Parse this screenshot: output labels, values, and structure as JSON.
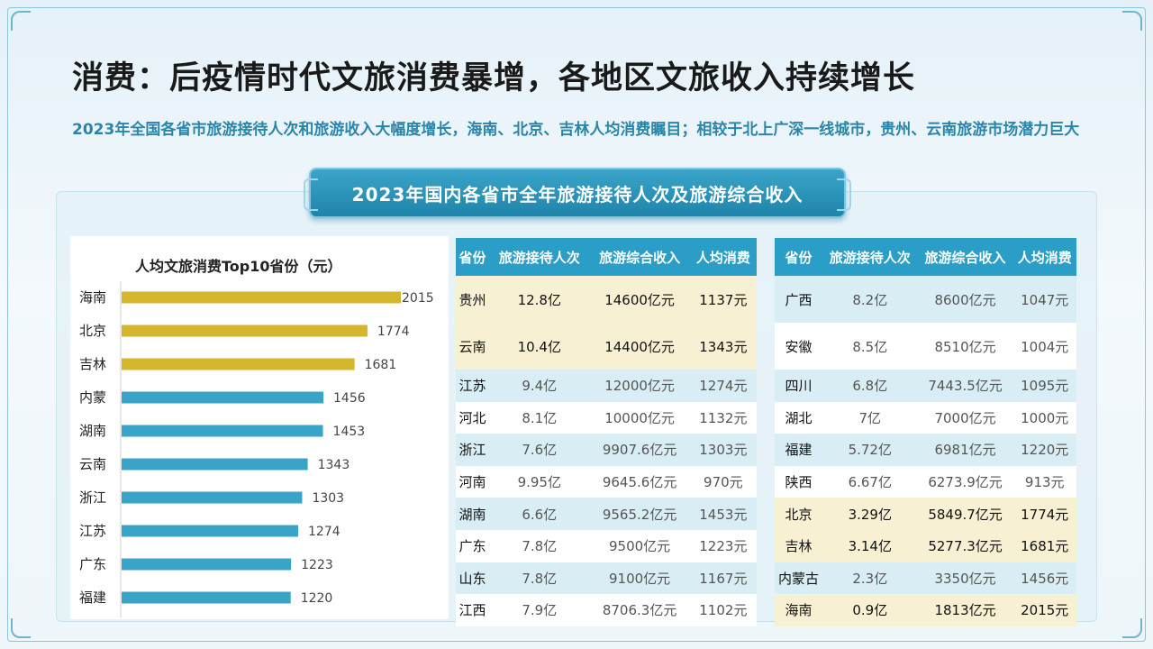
{
  "title": "消费：后疫情时代文旅消费暴增，各地区文旅收入持续增长",
  "subtitle": "2023年全国各省市旅游接待人次和旅游收入大幅度增长，海南、北京、吉林人均消费瞩目；相较于北上广深一线城市，贵州、云南旅游市场潜力巨大",
  "banner": "2023年国内各省市全年旅游接待人次及旅游综合收入",
  "chart_data": {
    "type": "bar",
    "title": "人均文旅消费Top10省份（元）",
    "categories": [
      "海南",
      "北京",
      "吉林",
      "内蒙",
      "湖南",
      "云南",
      "浙江",
      "江苏",
      "广东",
      "福建"
    ],
    "values": [
      2015,
      1774,
      1681,
      1456,
      1453,
      1343,
      1303,
      1274,
      1223,
      1220
    ],
    "highlight_count": 3,
    "colors": {
      "highlight": "#d4b62c",
      "normal": "#3aa4c8"
    },
    "orientation": "horizontal"
  },
  "table_headers": [
    "省份",
    "旅游接待人次",
    "旅游综合收入",
    "人均消费"
  ],
  "table_left": [
    {
      "province": "贵州",
      "visits": "12.8亿",
      "income": "14600亿元",
      "per": "1137元",
      "hl": true
    },
    {
      "province": "云南",
      "visits": "10.4亿",
      "income": "14400亿元",
      "per": "1343元",
      "hl": true
    },
    {
      "province": "江苏",
      "visits": "9.4亿",
      "income": "12000亿元",
      "per": "1274元",
      "hl": false
    },
    {
      "province": "河北",
      "visits": "8.1亿",
      "income": "10000亿元",
      "per": "1132元",
      "hl": false
    },
    {
      "province": "浙江",
      "visits": "7.6亿",
      "income": "9907.6亿元",
      "per": "1303元",
      "hl": false
    },
    {
      "province": "河南",
      "visits": "9.95亿",
      "income": "9645.6亿元",
      "per": "970元",
      "hl": false
    },
    {
      "province": "湖南",
      "visits": "6.6亿",
      "income": "9565.2亿元",
      "per": "1453元",
      "hl": false
    },
    {
      "province": "广东",
      "visits": "7.8亿",
      "income": "9500亿元",
      "per": "1223元",
      "hl": false
    },
    {
      "province": "山东",
      "visits": "7.8亿",
      "income": "9100亿元",
      "per": "1167元",
      "hl": false
    },
    {
      "province": "江西",
      "visits": "7.9亿",
      "income": "8706.3亿元",
      "per": "1102元",
      "hl": false
    }
  ],
  "table_right": [
    {
      "province": "广西",
      "visits": "8.2亿",
      "income": "8600亿元",
      "per": "1047元",
      "hl": false
    },
    {
      "province": "安徽",
      "visits": "8.5亿",
      "income": "8510亿元",
      "per": "1004元",
      "hl": false
    },
    {
      "province": "四川",
      "visits": "6.8亿",
      "income": "7443.5亿元",
      "per": "1095元",
      "hl": false
    },
    {
      "province": "湖北",
      "visits": "7亿",
      "income": "7000亿元",
      "per": "1000元",
      "hl": false
    },
    {
      "province": "福建",
      "visits": "5.72亿",
      "income": "6981亿元",
      "per": "1220元",
      "hl": false
    },
    {
      "province": "陕西",
      "visits": "6.67亿",
      "income": "6273.9亿元",
      "per": "913元",
      "hl": false
    },
    {
      "province": "北京",
      "visits": "3.29亿",
      "income": "5849.7亿元",
      "per": "1774元",
      "hl": true
    },
    {
      "province": "吉林",
      "visits": "3.14亿",
      "income": "5277.3亿元",
      "per": "1681元",
      "hl": true
    },
    {
      "province": "内蒙古",
      "visits": "2.3亿",
      "income": "3350亿元",
      "per": "1456元",
      "hl": false
    },
    {
      "province": "海南",
      "visits": "0.9亿",
      "income": "1813亿元",
      "per": "2015元",
      "hl": true
    }
  ]
}
